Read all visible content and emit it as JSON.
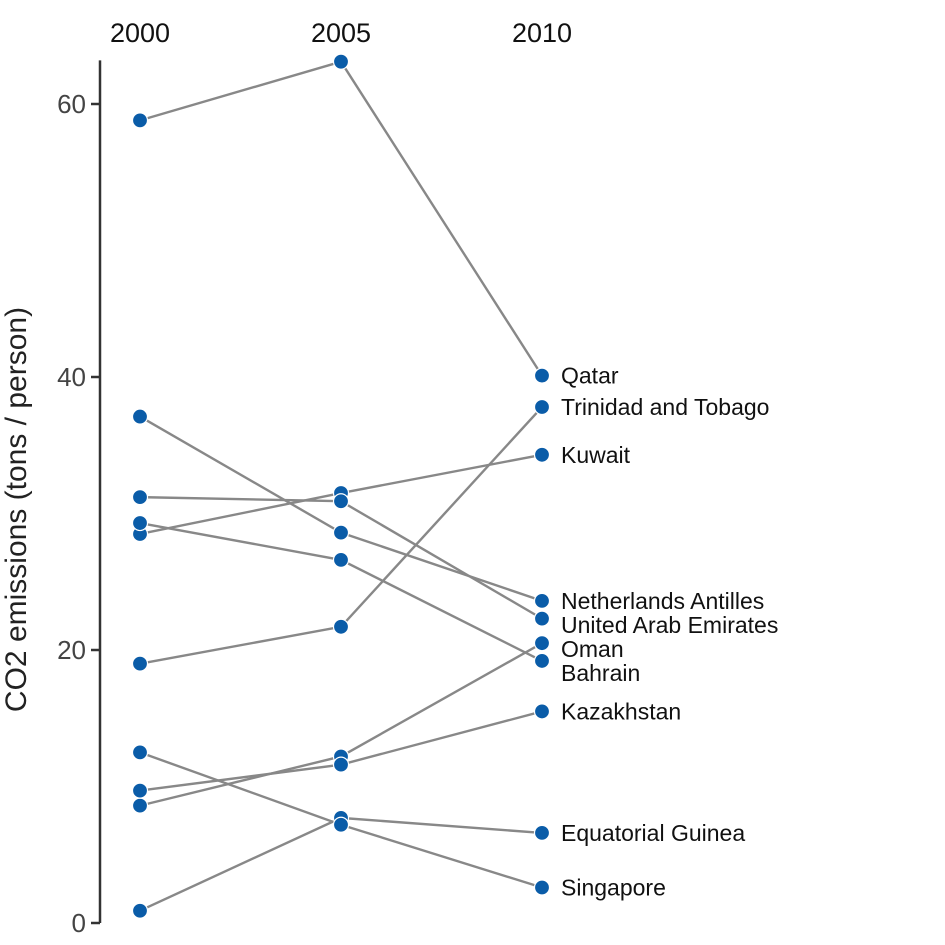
{
  "chart_data": {
    "type": "line",
    "chart_style": "slopegraph",
    "title": "",
    "xlabel": "",
    "ylabel": "CO2 emissions (tons / person)",
    "x": [
      2000,
      2005,
      2010
    ],
    "x_tick_labels": [
      "2000",
      "2005",
      "2010"
    ],
    "x_axis_position": "top",
    "ylim": [
      0,
      63.2
    ],
    "y_ticks": [
      0,
      20,
      40,
      60
    ],
    "y_tick_labels": [
      "0",
      "20",
      "40",
      "60"
    ],
    "grid": false,
    "legend": "none",
    "labels_position": "right of 2010 points",
    "colors": {
      "point": "#0a5ca8",
      "line": "#888888",
      "axis": "#333333"
    },
    "series": [
      {
        "name": "Qatar",
        "values": [
          58.8,
          63.1,
          40.1
        ]
      },
      {
        "name": "Trinidad and Tobago",
        "values": [
          19.0,
          21.7,
          37.8
        ]
      },
      {
        "name": "Kuwait",
        "values": [
          28.5,
          31.5,
          34.3
        ]
      },
      {
        "name": "Netherlands Antilles",
        "values": [
          37.1,
          28.6,
          23.6
        ]
      },
      {
        "name": "United Arab Emirates",
        "values": [
          31.2,
          30.9,
          22.3
        ]
      },
      {
        "name": "Oman",
        "values": [
          8.6,
          12.2,
          20.5
        ]
      },
      {
        "name": "Bahrain",
        "values": [
          29.3,
          26.6,
          19.2
        ]
      },
      {
        "name": "Kazakhstan",
        "values": [
          9.7,
          11.6,
          15.5
        ]
      },
      {
        "name": "Equatorial Guinea",
        "values": [
          0.9,
          7.7,
          6.6
        ]
      },
      {
        "name": "Singapore",
        "values": [
          12.5,
          7.2,
          2.6
        ]
      }
    ]
  }
}
